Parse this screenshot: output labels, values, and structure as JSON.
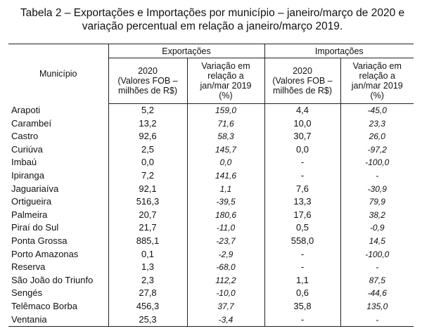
{
  "title": {
    "line1": "Tabela 2 – Exportações e Importações por município – janeiro/março de 2020 e",
    "line2": "variação percentual em relação a janeiro/março 2019."
  },
  "headers": {
    "municipio": "Município",
    "exportacoes": "Exportações",
    "importacoes": "Importações",
    "valores": "2020\n(Valores  FOB –\nmilhões de R$)",
    "variacao": "Variação em\nrelação a\njan/mar 2019\n(%)"
  },
  "rows": [
    {
      "municipio": "Arapoti",
      "exp": "5,2",
      "exp_var": "159,0",
      "imp": "4,4",
      "imp_var": "-45,0"
    },
    {
      "municipio": "Carambeí",
      "exp": "13,2",
      "exp_var": "71,6",
      "imp": "10,0",
      "imp_var": "23,3"
    },
    {
      "municipio": "Castro",
      "exp": "92,6",
      "exp_var": "58,3",
      "imp": "30,7",
      "imp_var": "26,0"
    },
    {
      "municipio": "Curiúva",
      "exp": "2,5",
      "exp_var": "145,7",
      "imp": "0,0",
      "imp_var": "-97,2"
    },
    {
      "municipio": "Imbaú",
      "exp": "0,0",
      "exp_var": "0,0",
      "imp": "-",
      "imp_var": "-100,0"
    },
    {
      "municipio": "Ipiranga",
      "exp": "7,2",
      "exp_var": "141,6",
      "imp": "-",
      "imp_var": "-"
    },
    {
      "municipio": "Jaguariaíva",
      "exp": "92,1",
      "exp_var": "1,1",
      "imp": "7,6",
      "imp_var": "-30,9"
    },
    {
      "municipio": "Ortigueira",
      "exp": "516,3",
      "exp_var": "-39,5",
      "imp": "13,3",
      "imp_var": "79,9"
    },
    {
      "municipio": "Palmeira",
      "exp": "20,7",
      "exp_var": "180,6",
      "imp": "17,6",
      "imp_var": "38,2"
    },
    {
      "municipio": "Piraí do Sul",
      "exp": "21,7",
      "exp_var": "-11,0",
      "imp": "0,5",
      "imp_var": "-0,9"
    },
    {
      "municipio": "Ponta Grossa",
      "exp": "885,1",
      "exp_var": "-23,7",
      "imp": "558,0",
      "imp_var": "14,5"
    },
    {
      "municipio": "Porto Amazonas",
      "exp": "0,1",
      "exp_var": "-2,9",
      "imp": "-",
      "imp_var": "-100,0"
    },
    {
      "municipio": "Reserva",
      "exp": "1,3",
      "exp_var": "-68,0",
      "imp": "-",
      "imp_var": "-"
    },
    {
      "municipio": "São João do Triunfo",
      "exp": "2,3",
      "exp_var": "112,2",
      "imp": "1,1",
      "imp_var": "87,5"
    },
    {
      "municipio": "Sengés",
      "exp": "27,8",
      "exp_var": "-10,0",
      "imp": "0,6",
      "imp_var": "-44,6"
    },
    {
      "municipio": "Telêmaco Borba",
      "exp": "456,3",
      "exp_var": "37,7",
      "imp": "35,8",
      "imp_var": "135,0"
    },
    {
      "municipio": "Ventania",
      "exp": "25,3",
      "exp_var": "-3,4",
      "imp": "-",
      "imp_var": "-"
    }
  ]
}
